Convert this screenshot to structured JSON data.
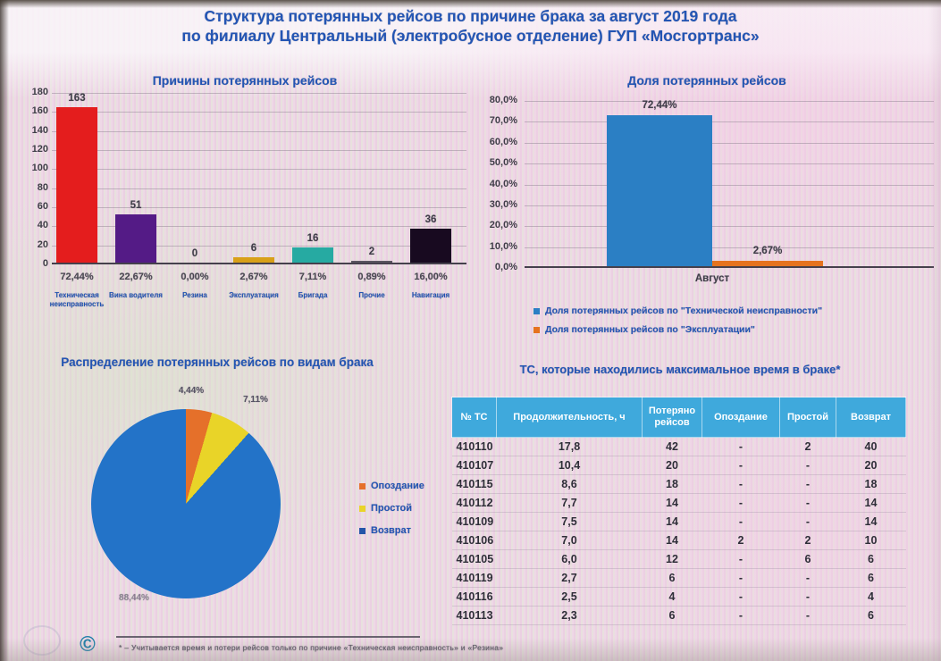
{
  "header": {
    "line1": "Структура потерянных рейсов по причине брака за август 2019 года",
    "line2": "по филиалу Центральный (электробусное отделение) ГУП «Мосгортранс»"
  },
  "colors": {
    "title_blue": "#2355b4",
    "axis_text": "#3f3d48",
    "grid_line": "#8b8294",
    "table_header_bg": "#3fa9dc",
    "table_text": "#2e2e38"
  },
  "chart_data": [
    {
      "id": "causes",
      "type": "bar",
      "title": "Причины потерянных рейсов",
      "categories": [
        "Техническая неисправность",
        "Вина водителя",
        "Резина",
        "Эксплуатация",
        "Бригада",
        "Прочие",
        "Навигация"
      ],
      "values": [
        163,
        51,
        0,
        6,
        16,
        2,
        36
      ],
      "value_labels": [
        "163",
        "51",
        "0",
        "6",
        "16",
        "2",
        "36"
      ],
      "percent_labels": [
        "72,44%",
        "22,67%",
        "0,00%",
        "2,67%",
        "7,11%",
        "0,89%",
        "16,00%"
      ],
      "bar_colors": [
        "#e41d1d",
        "#541b86",
        "#d8a018",
        "#d8a018",
        "#26aaa2",
        "#5a5560",
        "#180a20"
      ],
      "ylim": [
        0,
        180
      ],
      "yticks": [
        0,
        20,
        40,
        60,
        80,
        100,
        120,
        140,
        160,
        180
      ],
      "grid": true
    },
    {
      "id": "share",
      "type": "bar",
      "title": "Доля потерянных рейсов",
      "categories": [
        "Август"
      ],
      "series": [
        {
          "name": "Доля потерянных рейсов по \"Технической неисправности\"",
          "values": [
            72.44
          ],
          "value_label": "72,44%",
          "color": "#2b7fc4"
        },
        {
          "name": "Доля потерянных рейсов по \"Эксплуатации\"",
          "values": [
            2.67
          ],
          "value_label": "2,67%",
          "color": "#e5731f"
        }
      ],
      "ylim": [
        0,
        80
      ],
      "ytick_labels": [
        "0,0%",
        "10,0%",
        "20,0%",
        "30,0%",
        "40,0%",
        "50,0%",
        "60,0%",
        "70,0%",
        "80,0%"
      ],
      "grid": true,
      "legend_position": "bottom"
    },
    {
      "id": "defect-types",
      "type": "pie",
      "title": "Распределение потерянных рейсов по видам брака",
      "slices": [
        {
          "name": "Опоздание",
          "value": 4.44,
          "label": "4,44%",
          "color": "#e5702a"
        },
        {
          "name": "Простой",
          "value": 7.11,
          "label": "7,11%",
          "color": "#e9d428"
        },
        {
          "name": "Возврат",
          "value": 88.44,
          "label": "88,44%",
          "color": "#2373c8"
        }
      ],
      "legend": [
        "Опоздание",
        "Простой",
        "Возврат"
      ],
      "legend_marker_colors": [
        "#e5702a",
        "#e9d428",
        "#2356a8"
      ],
      "legend_position": "right",
      "start_angle_deg": 0,
      "direction": "clockwise"
    },
    {
      "id": "max-defect-vehicles",
      "type": "table",
      "title": "ТС, которые находились максимальное время в браке*",
      "columns": [
        "№ ТС",
        "Продолжительность, ч",
        "Потеряно рейсов",
        "Опоздание",
        "Простой",
        "Возврат"
      ],
      "rows": [
        [
          "410110",
          "17,8",
          "42",
          "-",
          "2",
          "40"
        ],
        [
          "410107",
          "10,4",
          "20",
          "-",
          "-",
          "20"
        ],
        [
          "410115",
          "8,6",
          "18",
          "-",
          "-",
          "18"
        ],
        [
          "410112",
          "7,7",
          "14",
          "-",
          "-",
          "14"
        ],
        [
          "410109",
          "7,5",
          "14",
          "-",
          "-",
          "14"
        ],
        [
          "410106",
          "7,0",
          "14",
          "2",
          "2",
          "10"
        ],
        [
          "410105",
          "6,0",
          "12",
          "-",
          "6",
          "6"
        ],
        [
          "410119",
          "2,7",
          "6",
          "-",
          "-",
          "6"
        ],
        [
          "410116",
          "2,5",
          "4",
          "-",
          "-",
          "4"
        ],
        [
          "410113",
          "2,3",
          "6",
          "-",
          "-",
          "6"
        ]
      ]
    }
  ],
  "footnote": {
    "text": "* – Учитывается время и потери рейсов только по причине «Техническая неисправность» и «Резина»"
  },
  "icons": {
    "bottom_left": "circular-arrow-icon"
  }
}
